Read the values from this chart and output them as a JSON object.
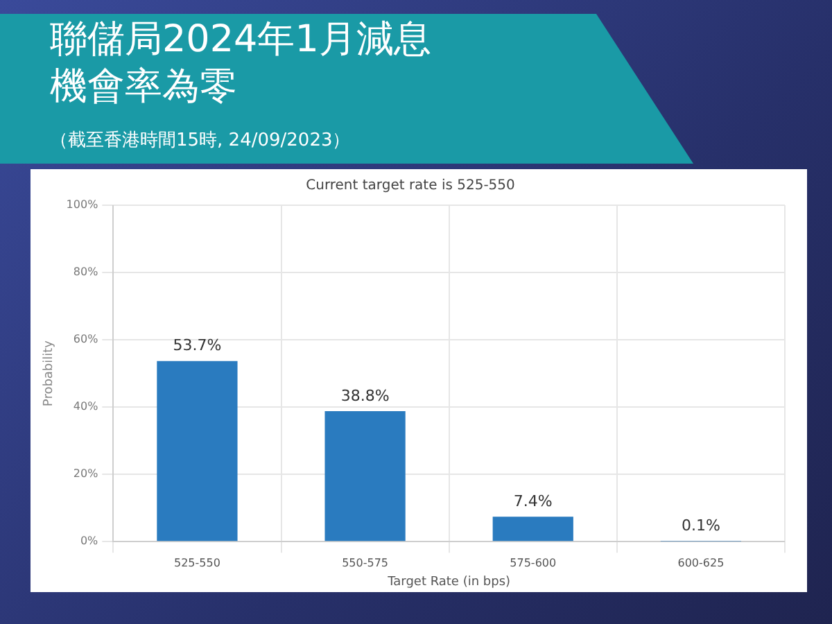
{
  "chart_data": {
    "type": "bar",
    "title": "聯儲局2024年1月減息機會率為零",
    "subtitle": "（截至香港時間15時, 24/09/2023）",
    "annotations": [
      "Current target rate is 525-550"
    ],
    "xlabel": "Target Rate (in bps)",
    "ylabel": "Probability",
    "categories": [
      "525-550",
      "550-575",
      "575-600",
      "600-625"
    ],
    "values": [
      53.7,
      38.8,
      7.4,
      0.1
    ],
    "value_labels": [
      "53.7%",
      "38.8%",
      "7.4%",
      "0.1%"
    ],
    "color": "#2a7bbf",
    "ylim": [
      0,
      100
    ],
    "yticks": [
      {
        "value": 0,
        "label": "0%"
      },
      {
        "value": 20,
        "label": "20%"
      },
      {
        "value": 40,
        "label": "40%"
      },
      {
        "value": 60,
        "label": "60%"
      },
      {
        "value": 80,
        "label": "80%"
      },
      {
        "value": 100,
        "label": "100%"
      }
    ],
    "grid": true,
    "legend": false
  }
}
